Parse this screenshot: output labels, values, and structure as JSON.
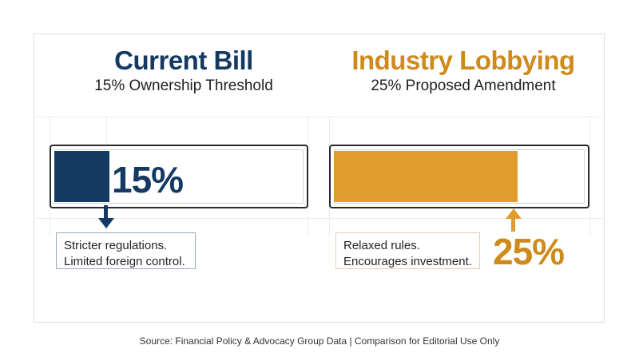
{
  "left_panel": {
    "title": "Current Bill",
    "subtitle": "15% Ownership Threshold",
    "value_label": "15%",
    "note_lines": [
      "Stricter regulations.",
      "Limited foreign control."
    ]
  },
  "right_panel": {
    "title": "Industry Lobbying",
    "subtitle": "25% Proposed Amendment",
    "value_label": "25%",
    "note_lines": [
      "Relaxed rules.",
      "Encourages investment."
    ]
  },
  "source": "Source: Financial Policy & Advocacy Group Data | Comparison for Editorial Use Only",
  "colors": {
    "navy": "#143a63",
    "gold": "#e19c2b"
  },
  "chart_data": [
    {
      "type": "bar",
      "title": "Current Bill",
      "subtitle": "15% Ownership Threshold",
      "categories": [
        "Current Bill"
      ],
      "values": [
        15
      ],
      "unit": "%",
      "color": "#143a63",
      "annotation": [
        "Stricter regulations.",
        "Limited foreign control."
      ]
    },
    {
      "type": "bar",
      "title": "Industry Lobbying",
      "subtitle": "25% Proposed Amendment",
      "categories": [
        "Industry Lobbying"
      ],
      "values": [
        25
      ],
      "unit": "%",
      "color": "#e19c2b",
      "annotation": [
        "Relaxed rules.",
        "Encourages investment."
      ]
    }
  ]
}
